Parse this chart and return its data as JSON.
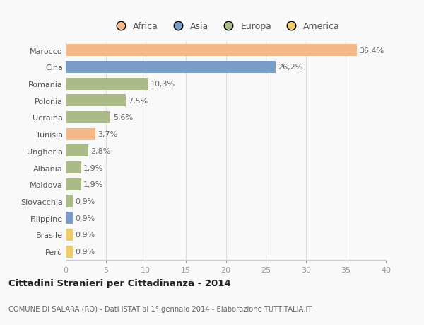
{
  "categories": [
    "Marocco",
    "Cina",
    "Romania",
    "Polonia",
    "Ucraina",
    "Tunisia",
    "Ungheria",
    "Albania",
    "Moldova",
    "Slovacchia",
    "Filippine",
    "Brasile",
    "Perù"
  ],
  "values": [
    36.4,
    26.2,
    10.3,
    7.5,
    5.6,
    3.7,
    2.8,
    1.9,
    1.9,
    0.9,
    0.9,
    0.9,
    0.9
  ],
  "labels": [
    "36,4%",
    "26,2%",
    "10,3%",
    "7,5%",
    "5,6%",
    "3,7%",
    "2,8%",
    "1,9%",
    "1,9%",
    "0,9%",
    "0,9%",
    "0,9%",
    "0,9%"
  ],
  "colors": [
    "#F5B888",
    "#7A9CC8",
    "#AABB88",
    "#AABB88",
    "#AABB88",
    "#F5B888",
    "#AABB88",
    "#AABB88",
    "#AABB88",
    "#AABB88",
    "#7A9CC8",
    "#F0CC66",
    "#F0CC66"
  ],
  "legend_labels": [
    "Africa",
    "Asia",
    "Europa",
    "America"
  ],
  "legend_colors": [
    "#F5B888",
    "#7A9CC8",
    "#AABB88",
    "#F0CC66"
  ],
  "xlim": [
    0,
    40
  ],
  "xticks": [
    0,
    5,
    10,
    15,
    20,
    25,
    30,
    35,
    40
  ],
  "title": "Cittadini Stranieri per Cittadinanza - 2014",
  "subtitle": "COMUNE DI SALARA (RO) - Dati ISTAT al 1° gennaio 2014 - Elaborazione TUTTITALIA.IT",
  "bg_color": "#f9f9f9",
  "bar_height": 0.72,
  "label_fontsize": 8,
  "ytick_fontsize": 8,
  "xtick_fontsize": 8
}
